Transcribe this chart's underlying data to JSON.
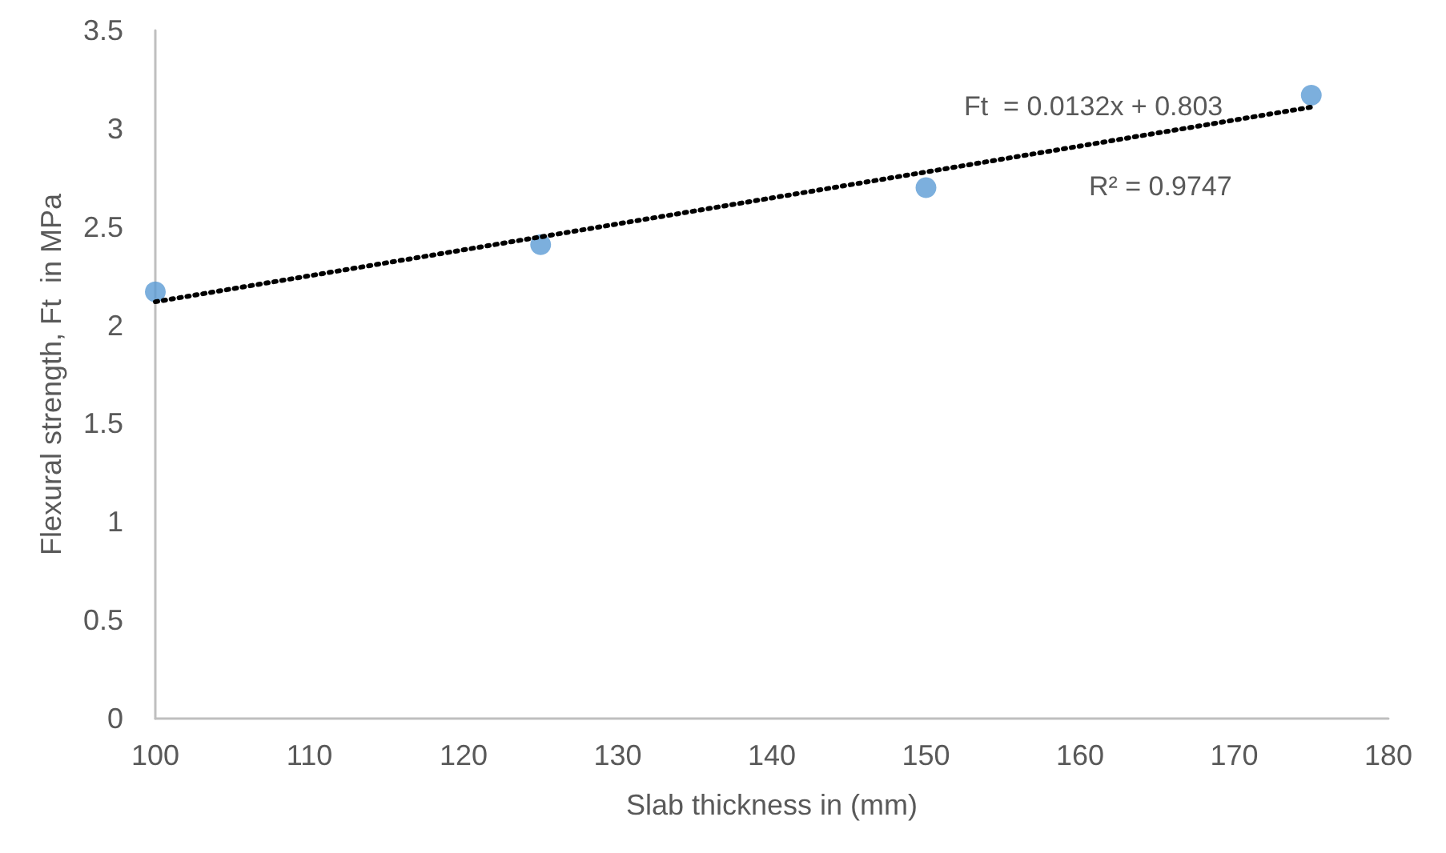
{
  "chart_data": {
    "type": "scatter",
    "xlabel": "Slab thickness in (mm)",
    "ylabel": "Flexural strength, Ft  in MPa",
    "annotations": [
      "Ft  = 0.0132x + 0.803",
      "R² = 0.9747"
    ],
    "series": [
      {
        "color": "#5b9bd5",
        "x": [
          100,
          125,
          150,
          175
        ],
        "values": [
          2.17,
          2.41,
          2.7,
          3.17
        ],
        "marker": "circle"
      },
      {
        "type": "line",
        "color": "#000000",
        "x": [
          100,
          175
        ],
        "values": [
          2.12,
          3.11
        ],
        "line_style": "dotted",
        "marker": "none"
      }
    ],
    "xlim": [
      100,
      180
    ],
    "xticks": [
      100,
      110,
      120,
      130,
      140,
      150,
      160,
      170,
      180
    ],
    "ylim": [
      0,
      3.5
    ],
    "yticks": [
      0,
      0.5,
      1,
      1.5,
      2,
      2.5,
      3,
      3.5
    ],
    "grid": false
  }
}
